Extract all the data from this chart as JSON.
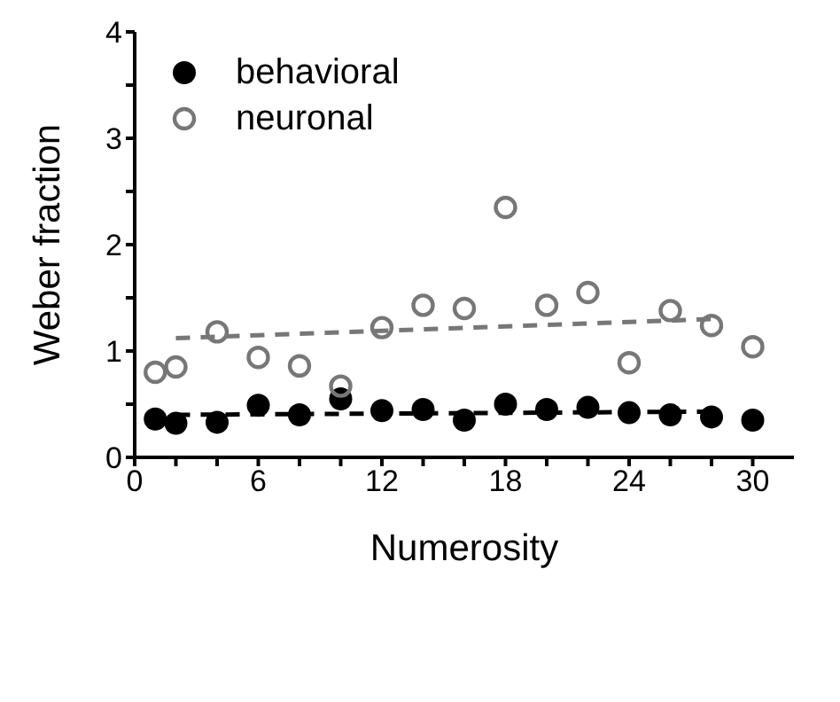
{
  "chart_data": {
    "type": "scatter",
    "xlabel": "Numerosity",
    "ylabel": "Weber fraction",
    "x": [
      1,
      2,
      4,
      6,
      8,
      10,
      12,
      14,
      16,
      18,
      20,
      22,
      24,
      26,
      28,
      30
    ],
    "series": [
      {
        "name": "behavioral",
        "color": "#000000",
        "marker": "circle",
        "values": [
          0.36,
          0.32,
          0.33,
          0.49,
          0.4,
          0.55,
          0.44,
          0.45,
          0.35,
          0.5,
          0.45,
          0.47,
          0.42,
          0.4,
          0.38,
          0.35
        ]
      },
      {
        "name": "neuronal",
        "color": "#777777",
        "marker": "circle",
        "values": [
          0.8,
          0.85,
          1.18,
          0.94,
          0.86,
          0.67,
          1.22,
          1.43,
          1.4,
          2.35,
          1.43,
          1.55,
          0.89,
          1.38,
          1.24,
          1.04
        ]
      },
      {
        "type": "line",
        "color": "#000000",
        "line_style": "dashed",
        "marker": "none",
        "values": [
          null,
          0.4,
          null,
          null,
          null,
          null,
          null,
          null,
          null,
          null,
          null,
          null,
          null,
          null,
          0.43,
          null
        ]
      },
      {
        "type": "line",
        "color": "#777777",
        "line_style": "dashed",
        "marker": "none",
        "values": [
          null,
          1.12,
          null,
          null,
          null,
          null,
          null,
          null,
          null,
          null,
          null,
          null,
          null,
          null,
          1.3,
          null
        ]
      }
    ],
    "xlim": [
      0,
      32
    ],
    "xticks": [
      0,
      {
        "value": 2,
        "label": null
      },
      {
        "value": 4,
        "label": null
      },
      6,
      {
        "value": 8,
        "label": null
      },
      {
        "value": 10,
        "label": null
      },
      12,
      {
        "value": 14,
        "label": null
      },
      {
        "value": 16,
        "label": null
      },
      18,
      {
        "value": 20,
        "label": null
      },
      {
        "value": 22,
        "label": null
      },
      24,
      {
        "value": 26,
        "label": null
      },
      {
        "value": 28,
        "label": null
      },
      30
    ],
    "ylim": [
      0,
      4
    ],
    "yticks": [
      0,
      {
        "value": 0.5,
        "label": null
      },
      1,
      {
        "value": 1.5,
        "label": null
      },
      2,
      {
        "value": 2.5,
        "label": null
      },
      3,
      {
        "value": 3.5,
        "label": null
      },
      4
    ],
    "grid": false,
    "legend": "top left"
  }
}
